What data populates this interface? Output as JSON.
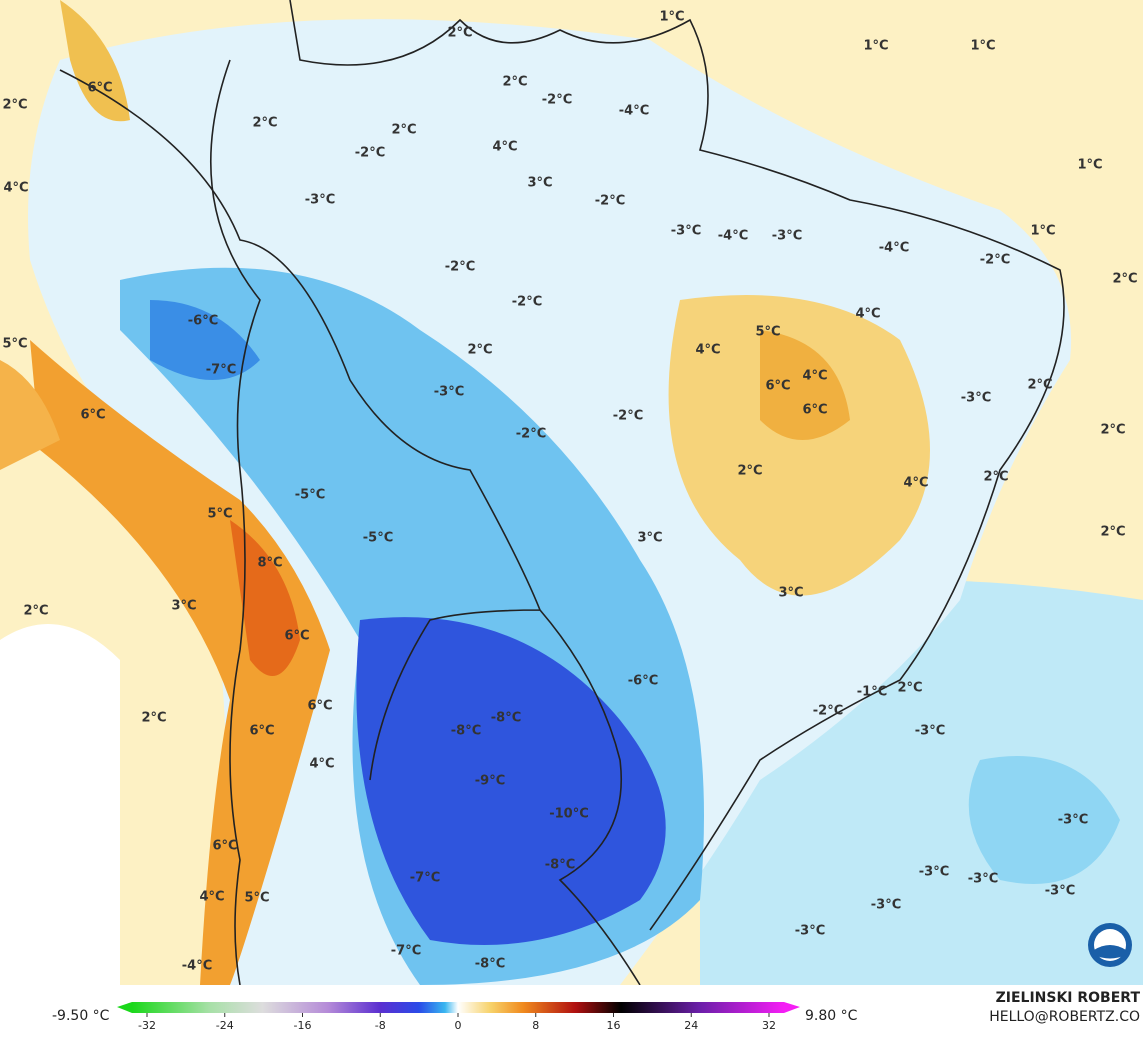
{
  "map": {
    "labels": [
      "1°C",
      "1°C",
      "1°C",
      "2°C",
      "2°C",
      "6°C",
      "2°C",
      "-2°C",
      "-4°C",
      "2°C",
      "2°C",
      "4°C",
      "-2°C",
      "1°C",
      "4°C",
      "3°C",
      "-3°C",
      "-2°C",
      "-3°C",
      "-4°C",
      "-3°C",
      "1°C",
      "-4°C",
      "-2°C",
      "-2°C",
      "2°C",
      "-2°C",
      "-6°C",
      "5°C",
      "4°C",
      "5°C",
      "2°C",
      "4°C",
      "-7°C",
      "6°C",
      "4°C",
      "-3°C",
      "-3°C",
      "2°C",
      "6°C",
      "6°C",
      "-2°C",
      "2°C",
      "-2°C",
      "2°C",
      "4°C",
      "2°C",
      "-5°C",
      "5°C",
      "-5°C",
      "3°C",
      "2°C",
      "8°C",
      "2°C",
      "3°C",
      "3°C",
      "6°C",
      "-6°C",
      "-1°C",
      "2°C",
      "2°C",
      "6°C",
      "-8°C",
      "-2°C",
      "-8°C",
      "6°C",
      "-3°C",
      "4°C",
      "-9°C",
      "-10°C",
      "-3°C",
      "6°C",
      "-8°C",
      "-3°C",
      "-3°C",
      "-3°C",
      "-7°C",
      "5°C",
      "4°C",
      "-3°C",
      "-3°C",
      "-7°C",
      "-8°C",
      "-4°C"
    ]
  },
  "footer": {
    "min_label": "-9.50 °C",
    "max_label": "9.80 °C",
    "ticks": [
      -32,
      -24,
      -16,
      -8,
      0,
      8,
      16,
      24,
      32
    ],
    "credit_name": "ZIELINSKI ROBERT",
    "credit_email": "HELLO@ROBERTZ.CO"
  }
}
